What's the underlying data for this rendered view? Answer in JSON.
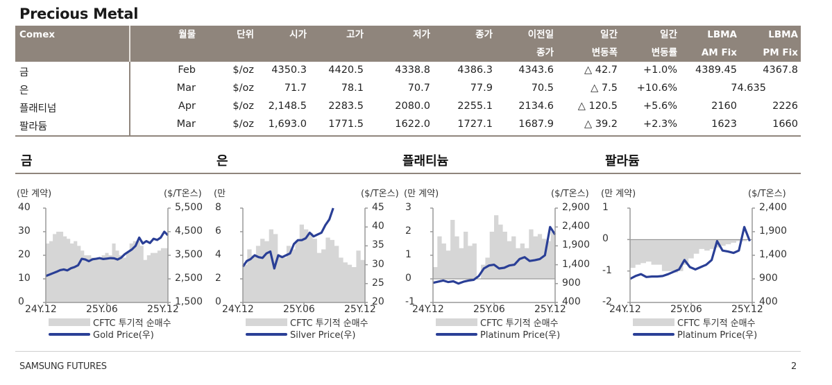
{
  "page": {
    "title": "Precious Metal",
    "footer_left": "SAMSUNG FUTURES",
    "page_number": "2"
  },
  "table": {
    "header_color": "#8f857c",
    "columns": [
      {
        "line1": "Comex",
        "line2": ""
      },
      {
        "line1": "월물",
        "line2": ""
      },
      {
        "line1": "단위",
        "line2": ""
      },
      {
        "line1": "시가",
        "line2": ""
      },
      {
        "line1": "고가",
        "line2": ""
      },
      {
        "line1": "저가",
        "line2": ""
      },
      {
        "line1": "종가",
        "line2": ""
      },
      {
        "line1": "이전일",
        "line2": "종가"
      },
      {
        "line1": "일간",
        "line2": "변동폭"
      },
      {
        "line1": "일간",
        "line2": "변동률"
      },
      {
        "line1": "LBMA",
        "line2": "AM Fix"
      },
      {
        "line1": "LBMA",
        "line2": "PM Fix"
      }
    ],
    "rows": [
      {
        "name": "금",
        "month": "Feb",
        "unit": "$/oz",
        "open": "4350.3",
        "high": "4420.5",
        "low": "4338.8",
        "close": "4386.3",
        "prev_close": "4343.6",
        "change": "△ 42.7",
        "change_pct": "+1.0%",
        "am_fix": "4389.45",
        "pm_fix": "4367.8"
      },
      {
        "name": "은",
        "month": "Mar",
        "unit": "$/oz",
        "open": "71.7",
        "high": "78.1",
        "low": "70.7",
        "close": "77.9",
        "prev_close": "70.5",
        "change": "△ 7.5",
        "change_pct": "+10.6%",
        "am_fix": "74.635",
        "pm_fix": ""
      },
      {
        "name": "플래티넘",
        "month": "Apr",
        "unit": "$/oz",
        "open": "2,148.5",
        "high": "2283.5",
        "low": "2080.0",
        "close": "2255.1",
        "prev_close": "2134.6",
        "change": "△ 120.5",
        "change_pct": "+5.6%",
        "am_fix": "2160",
        "pm_fix": "2226"
      },
      {
        "name": "팔라듐",
        "month": "Mar",
        "unit": "$/oz",
        "open": "1,693.0",
        "high": "1771.5",
        "low": "1622.0",
        "close": "1727.1",
        "prev_close": "1687.9",
        "change": "△ 39.2",
        "change_pct": "+2.3%",
        "am_fix": "1623",
        "pm_fix": "1660"
      }
    ]
  },
  "sections": [
    {
      "title": "금"
    },
    {
      "title": "은"
    },
    {
      "title": "플래티늄"
    },
    {
      "title": "팔라듐"
    }
  ],
  "colors": {
    "price_line": "#2a3f96",
    "cftc_area": "#d6d6d6",
    "axis": "#999999"
  },
  "chart_data": [
    {
      "type": "area+line",
      "title": "금",
      "ylabel_left": "(만 계약)",
      "ylabel_right": "($/T온스)",
      "x_ticks": [
        "24Y.12",
        "25Y.06",
        "25Y.12"
      ],
      "y_left_ticks": [
        "40",
        "30",
        "20",
        "10",
        "0"
      ],
      "y_left_range": [
        0,
        40
      ],
      "y_right_ticks": [
        "5,500",
        "4,500",
        "3,500",
        "2,500",
        "1,500"
      ],
      "y_right_range": [
        1500,
        5500
      ],
      "legend": [
        "CFTC 투기적 순매수",
        "Gold Price(우)"
      ],
      "series": [
        {
          "name": "CFTC 투기적 순매수",
          "axis": "left",
          "values": [
            25,
            26,
            29,
            30,
            30,
            28,
            27,
            25,
            26,
            24,
            22,
            20,
            20,
            19,
            19,
            19,
            20,
            21,
            20,
            25,
            22,
            20,
            19,
            21,
            25,
            26,
            26,
            24,
            18,
            20,
            21,
            21,
            22,
            23,
            23
          ]
        },
        {
          "name": "Gold Price(우)",
          "axis": "right",
          "values": [
            2620,
            2680,
            2740,
            2800,
            2870,
            2900,
            2860,
            2950,
            3000,
            3080,
            3350,
            3320,
            3250,
            3330,
            3350,
            3380,
            3340,
            3360,
            3380,
            3370,
            3320,
            3400,
            3550,
            3650,
            3750,
            3900,
            4250,
            4000,
            4100,
            4020,
            4200,
            4150,
            4250,
            4500,
            4350
          ]
        }
      ]
    },
    {
      "type": "area+line",
      "title": "은",
      "ylabel_left": "(만",
      "ylabel_right": "($/T온스)",
      "x_ticks": [
        "24Y.12",
        "25Y.06",
        "25Y.12"
      ],
      "y_left_ticks": [
        "8",
        "6",
        "4",
        "2",
        "0"
      ],
      "y_left_range": [
        0,
        8
      ],
      "y_right_ticks": [
        "45",
        "40",
        "35",
        "30",
        "25",
        "20"
      ],
      "y_right_range": [
        20,
        45
      ],
      "legend": [
        "CFTC 투기적 순매수",
        "Silver Price(우)"
      ],
      "series": [
        {
          "name": "CFTC 투기적 순매수",
          "axis": "left",
          "values": [
            3.2,
            4.5,
            4.0,
            4.8,
            5.4,
            5.2,
            6.2,
            5.8,
            4.0,
            3.8,
            4.8,
            4.5,
            5.2,
            6.6,
            6.2,
            5.9,
            5.4,
            4.2,
            4.5,
            5.5,
            5.3,
            4.8,
            3.8,
            3.4,
            3.2,
            3.0,
            4.4,
            3.6
          ]
        },
        {
          "name": "Silver Price(우)",
          "axis": "right",
          "values": [
            29.5,
            31,
            31.5,
            32.5,
            32,
            31.8,
            33,
            33.5,
            29,
            32.5,
            32,
            32.5,
            33,
            35.5,
            36.5,
            36.5,
            37,
            38.5,
            37.5,
            38,
            38.5,
            40.5,
            42,
            45
          ]
        }
      ]
    },
    {
      "type": "area+line",
      "title": "플래티늄",
      "ylabel_left": "(만 계약)",
      "ylabel_right": "($/T온스)",
      "x_ticks": [
        "24Y.12",
        "25Y.06",
        "25Y.12"
      ],
      "y_left_ticks": [
        "3",
        "2",
        "1",
        "0",
        "-1"
      ],
      "y_left_range": [
        -1,
        3
      ],
      "y_right_ticks": [
        "2,900",
        "2,400",
        "1,900",
        "1,400",
        "900",
        "400"
      ],
      "y_right_range": [
        400,
        2900
      ],
      "legend": [
        "CFTC 투기적 순매수",
        "Platinum Price(우)"
      ],
      "series": [
        {
          "name": "CFTC 투기적 순매수",
          "axis": "left",
          "values": [
            0.5,
            1.8,
            1.5,
            1.2,
            2.5,
            1.8,
            1.3,
            2.0,
            1.4,
            1.5,
            0.0,
            0.6,
            0.9,
            2.0,
            2.7,
            2.3,
            2.0,
            1.6,
            1.8,
            1.3,
            1.5,
            1.3,
            2.1,
            1.8,
            1.9,
            1.7,
            1.6,
            2.0
          ]
        },
        {
          "name": "Platinum Price(우)",
          "axis": "right",
          "values": [
            920,
            950,
            980,
            940,
            960,
            900,
            950,
            980,
            1000,
            1100,
            1300,
            1380,
            1400,
            1300,
            1320,
            1380,
            1400,
            1550,
            1600,
            1500,
            1520,
            1550,
            1650,
            2400,
            2200
          ]
        }
      ]
    },
    {
      "type": "area+line",
      "title": "팔라듐",
      "ylabel_left": "(만 계약)",
      "ylabel_right": "($/T온스)",
      "x_ticks": [
        "24Y.12",
        "25Y.06",
        "25Y.12"
      ],
      "y_left_ticks": [
        "1",
        "0",
        "-1",
        "-2"
      ],
      "y_left_range": [
        -2,
        1
      ],
      "y_right_ticks": [
        "2,400",
        "1,900",
        "1,400",
        "900",
        "400"
      ],
      "y_right_range": [
        400,
        2400
      ],
      "legend": [
        "CFTC 투기적 순매수",
        "Platinum Price(우)"
      ],
      "series": [
        {
          "name": "CFTC 투기적 순매수",
          "axis": "left",
          "values": [
            -0.9,
            -0.8,
            -0.75,
            -0.7,
            -0.8,
            -0.8,
            -1.0,
            -1.0,
            -1.05,
            -1.0,
            -0.8,
            -0.6,
            -0.45,
            -0.3,
            -0.35,
            -0.3,
            -0.25,
            -0.2,
            -0.15,
            -0.1,
            -0.05,
            -0.05,
            0.0
          ]
        },
        {
          "name": "Platinum Price(우)",
          "axis": "right",
          "values": [
            900,
            960,
            1000,
            940,
            950,
            950,
            960,
            1000,
            1050,
            1100,
            1300,
            1150,
            1100,
            1150,
            1200,
            1300,
            1700,
            1500,
            1480,
            1450,
            1500,
            2000,
            1700
          ]
        }
      ]
    }
  ]
}
